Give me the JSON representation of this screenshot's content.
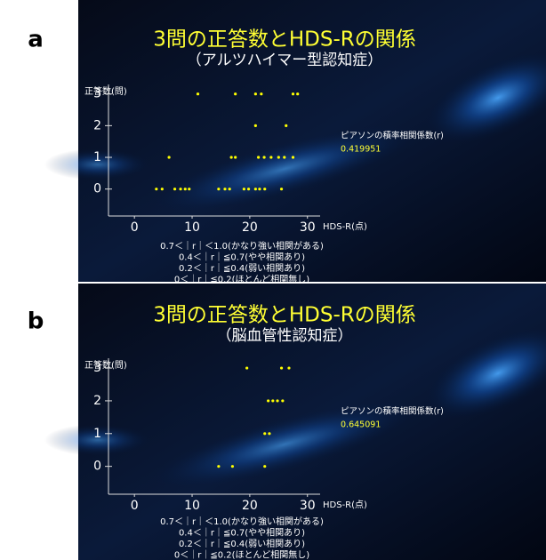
{
  "panel_labels": [
    "a",
    "b"
  ],
  "chart_data": [
    {
      "type": "scatter",
      "title": "3問の正答数とHDS-Rの関係",
      "subtitle": "（アルツハイマー型認知症）",
      "y_label": "正答数(問)",
      "x_label": "HDS-R(点)",
      "xlim": [
        -4.5,
        32.2
      ],
      "ylim": [
        -0.85,
        3.3
      ],
      "xticks": [
        0,
        10,
        20,
        30
      ],
      "yticks": [
        0,
        1,
        2,
        3
      ],
      "series": [
        {
          "color": "#ffff00",
          "x": [
            11,
            17.5,
            21,
            22,
            27.5,
            28.3,
            21,
            26.3,
            6,
            16.8,
            17.5,
            21.5,
            22.5,
            23.7,
            25,
            26,
            27.5,
            3.8,
            4.8,
            7,
            8,
            8.8,
            9.5,
            14.6,
            15.7,
            16.5,
            19,
            19.8,
            21,
            21.7,
            22.6,
            25.5
          ],
          "values": [
            3,
            3,
            3,
            3,
            3,
            3,
            2,
            2,
            1,
            1,
            1,
            1,
            1,
            1,
            1,
            1,
            1,
            0,
            0,
            0,
            0,
            0,
            0,
            0,
            0,
            0,
            0,
            0,
            0,
            0,
            0,
            0
          ]
        }
      ],
      "annotation": "ピアソンの積率相関係数(r)",
      "r_value": 0.419951,
      "notes": [
        "0.7＜｜r｜＜1.0(かなり強い相関がある)",
        "0.4＜｜r｜≦0.7(やや相関あり)",
        "0.2＜｜r｜≦0.4(弱い相関あり)",
        "0＜｜r｜≦0.2(ほとんど相関無し)"
      ]
    },
    {
      "type": "scatter",
      "title": "3問の正答数とHDS-Rの関係",
      "subtitle": "（脳血管性認知症）",
      "y_label": "正答数(問)",
      "x_label": "HDS-R(点)",
      "xlim": [
        -4.5,
        32.2
      ],
      "ylim": [
        -0.85,
        3.3
      ],
      "xticks": [
        0,
        10,
        20,
        30
      ],
      "yticks": [
        0,
        1,
        2,
        3
      ],
      "series": [
        {
          "color": "#ffff00",
          "x": [
            19.5,
            25.5,
            26.8,
            23.2,
            24,
            24.8,
            25.7,
            22.6,
            23.4,
            14.6,
            17,
            22.6
          ],
          "values": [
            3,
            3,
            3,
            2,
            2,
            2,
            2,
            1,
            1,
            0,
            0,
            0
          ]
        }
      ],
      "annotation": "ピアソンの積率相関係数(r)",
      "r_value": 0.645091,
      "notes": [
        "0.7＜｜r｜＜1.0(かなり強い相関がある)",
        "0.4＜｜r｜≦0.7(やや相関あり)",
        "0.2＜｜r｜≦0.4(弱い相関あり)",
        "0＜｜r｜≦0.2(ほとんど相関無し)"
      ]
    }
  ]
}
